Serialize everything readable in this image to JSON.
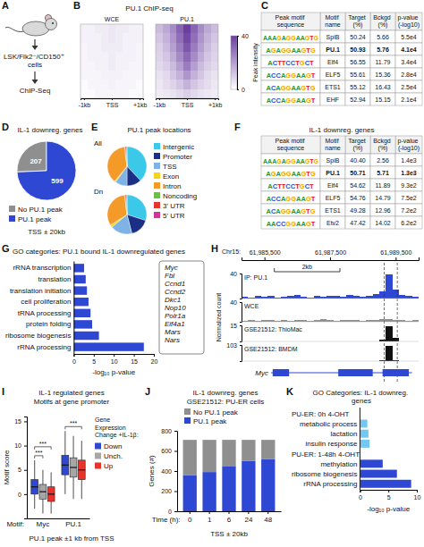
{
  "panel_labels": [
    "A",
    "B",
    "C",
    "D",
    "E",
    "F",
    "G",
    "H",
    "I",
    "J",
    "K"
  ],
  "diagram": {
    "steps": [
      "LSK/Flk2⁻/CD150⁺ cells",
      "ChIP-Seq"
    ]
  },
  "logo_colors": {
    "A": "#1a9e2a",
    "C": "#1f4fd1",
    "G": "#f0a500",
    "T": "#d62020"
  },
  "tables": [
    {
      "columns": [
        "Peak motif sequence",
        "Motif name",
        "Target (%)",
        "Bckgd (%)",
        "p-value (-log10)"
      ],
      "rows": [
        {
          "logo": "AAAGAGGAAGTG",
          "motif": "SpiB",
          "target": "50.24",
          "bckgd": "5.66",
          "p": "5.5e4"
        },
        {
          "logo": "AGAGGAAGTG",
          "motif": "PU.1",
          "target": "50.93",
          "bckgd": "5.76",
          "p": "4.1e4",
          "highlight": true
        },
        {
          "logo": "ACTTCCTGCT",
          "motif": "Elf4",
          "target": "56.55",
          "bckgd": "11.79",
          "p": "3.4e4"
        },
        {
          "logo": "ACCAGGAAGT",
          "motif": "ELF5",
          "target": "55.61",
          "bckgd": "15.36",
          "p": "2.8e4"
        },
        {
          "logo": "ACAGGAAGTG",
          "motif": "ETS1",
          "target": "55.12",
          "bckgd": "16.43",
          "p": "2.5e4"
        },
        {
          "logo": "ACCAGGAAGT",
          "motif": "EHF",
          "target": "52.94",
          "bckgd": "15.15",
          "p": "2.1e4"
        }
      ]
    },
    {
      "title": "IL-1 downreg. genes",
      "columns": [
        "Peak motif sequence",
        "Motif name",
        "Target (%)",
        "Bckgd (%)",
        "p-value (-log10)"
      ],
      "rows": [
        {
          "logo": "AAAGAGGAAGTG",
          "motif": "SpiB",
          "target": "40.40",
          "bckgd": "2.56",
          "p": "1.4e3"
        },
        {
          "logo": "AGAGGAAGTG",
          "motif": "PU.1",
          "target": "50.71",
          "bckgd": "5.71",
          "p": "1.3e3",
          "highlight": true
        },
        {
          "logo": "ACTTCCTGCT",
          "motif": "Elf4",
          "target": "54.62",
          "bckgd": "11.89",
          "p": "9.3e2"
        },
        {
          "logo": "ACCAGGAAGT",
          "motif": "ELF5",
          "target": "54.76",
          "bckgd": "14.79",
          "p": "7.5e2"
        },
        {
          "logo": "ACAGGAAGTG",
          "motif": "ETS1",
          "target": "49.28",
          "bckgd": "12.96",
          "p": "7.2e2"
        },
        {
          "logo": "AACCGGAAGT",
          "motif": "Etv2",
          "target": "47.42",
          "bckgd": "14.02",
          "p": "6.2e2"
        }
      ]
    }
  ],
  "chart_data": [
    {
      "type": "heatmap",
      "title": "PU.1 ChIP-seq",
      "color": "#6b3fa0",
      "xlim": [
        -1125,
        1125
      ],
      "bins": [
        -1125,
        -875,
        -625,
        -375,
        -125,
        125,
        375,
        625,
        875,
        1125
      ],
      "xticks": [
        {
          "value": -1000,
          "label": "-1kb"
        },
        {
          "value": 0,
          "label": "TSS"
        },
        {
          "value": 1000,
          "label": "+1kb"
        }
      ],
      "colorbar": {
        "label": "Peak intensity",
        "range": [
          0,
          40
        ],
        "ticks": [
          0,
          40
        ]
      },
      "panels": [
        {
          "name": "WCE",
          "cells": [
            [
              3,
              3,
              4,
              4,
              5,
              4,
              4,
              3,
              3
            ],
            [
              3,
              3,
              3,
              4,
              5,
              4,
              3,
              3,
              3
            ],
            [
              2,
              3,
              3,
              4,
              4,
              4,
              3,
              3,
              2
            ],
            [
              2,
              3,
              3,
              3,
              4,
              3,
              3,
              3,
              2
            ],
            [
              2,
              2,
              3,
              3,
              4,
              3,
              3,
              2,
              2
            ],
            [
              2,
              2,
              2,
              3,
              3,
              3,
              2,
              2,
              2
            ],
            [
              1,
              2,
              2,
              2,
              3,
              2,
              2,
              2,
              1
            ],
            [
              1,
              1,
              2,
              2,
              2,
              2,
              2,
              1,
              1
            ]
          ]
        },
        {
          "name": "PU.1",
          "cells": [
            [
              14,
              18,
              24,
              32,
              40,
              32,
              24,
              18,
              14
            ],
            [
              12,
              16,
              22,
              30,
              38,
              30,
              22,
              16,
              12
            ],
            [
              10,
              14,
              20,
              27,
              35,
              27,
              20,
              14,
              10
            ],
            [
              9,
              12,
              17,
              24,
              31,
              24,
              17,
              12,
              9
            ],
            [
              8,
              10,
              14,
              20,
              27,
              20,
              14,
              10,
              8
            ],
            [
              6,
              8,
              12,
              16,
              22,
              16,
              12,
              8,
              6
            ],
            [
              5,
              7,
              9,
              12,
              16,
              12,
              9,
              7,
              5
            ],
            [
              4,
              5,
              6,
              8,
              10,
              8,
              6,
              5,
              4
            ]
          ]
        }
      ]
    },
    {
      "type": "pie",
      "title": "IL-1 downreg. genes",
      "categories": [
        "No PU.1 peak",
        "PU.1 peak"
      ],
      "values": [
        207,
        599
      ],
      "colors": [
        "#8f8f8f",
        "#2e48d4"
      ],
      "data_labels": true,
      "legend": "bottom",
      "note": "TSS ± 20kb"
    },
    {
      "type": "pie",
      "title": "PU.1 peak locations",
      "categories": [
        "Intergenic",
        "Promoter",
        "TSS",
        "Exon",
        "Intron",
        "Noncoding",
        "3' UTR",
        "5' UTR"
      ],
      "colors": [
        "#3cc8e8",
        "#1c2f86",
        "#7fb2e5",
        "#f5d31c",
        "#f39a28",
        "#6abf4b",
        "#e2372f",
        "#d0359b"
      ],
      "series": [
        {
          "name": "All",
          "values": [
            38,
            12,
            10,
            1,
            37,
            0.5,
            1,
            0.5
          ]
        },
        {
          "name": "Dn",
          "values": [
            30,
            16,
            18,
            2,
            32,
            0.5,
            1,
            0.5
          ]
        }
      ],
      "legend": "right"
    },
    {
      "type": "bar",
      "orientation": "horizontal",
      "title": "GO categories: PU.1 bound IL-1 downregulated genes",
      "categories": [
        "rRNA transcription",
        "translation",
        "translation initiation",
        "cell proliferation",
        "tRNA processing",
        "protein folding",
        "ribosome biogenesis",
        "rRNA processing"
      ],
      "values": [
        2.6,
        3,
        3.3,
        3.7,
        4.2,
        4.6,
        6.3,
        17.5
      ],
      "color": "#2e48d4",
      "xlim": [
        0,
        20
      ],
      "xticks": [
        0,
        5,
        10,
        15,
        20
      ],
      "xlabel": "-log₁₀ p-value",
      "genes": [
        "Myc",
        "Fbl",
        "Ccnd1",
        "Ccnd2",
        "Dkc1",
        "Nop10",
        "Polr1a",
        "Eif4a1",
        "Mars",
        "Nars"
      ]
    },
    {
      "type": "tracks",
      "chrom": "Chr15:",
      "xlim": [
        61984800,
        61990200
      ],
      "xticks": [
        {
          "value": 61985500,
          "label": "61,985,500"
        },
        {
          "value": 61987500,
          "label": "61,987,500"
        },
        {
          "value": 61989500,
          "label": "61,989,500"
        }
      ],
      "bins": [
        61984800,
        61985000,
        61985200,
        61985400,
        61985600,
        61985800,
        61986000,
        61986200,
        61986400,
        61986600,
        61986800,
        61987000,
        61987200,
        61987400,
        61987600,
        61987800,
        61988000,
        61988200,
        61988400,
        61988600,
        61988800,
        61989000,
        61989200,
        61989400,
        61989600,
        61989800,
        61990000,
        61990200
      ],
      "ylabel": "Normalized count",
      "scale_bar": {
        "label": "2kb",
        "start": 61985800,
        "end": 61987800
      },
      "peak_region": [
        61989150,
        61989550
      ],
      "tracks": [
        {
          "name": "IP: PU.1",
          "color": "#2e48d4",
          "ylim": [
            0,
            40
          ],
          "yticks": [
            40
          ],
          "values": [
            3,
            2,
            4,
            3,
            5,
            2,
            3,
            4,
            6,
            3,
            2,
            4,
            3,
            5,
            4,
            3,
            6,
            4,
            3,
            5,
            7,
            12,
            38,
            15,
            6,
            4,
            3
          ]
        },
        {
          "name": "WCE",
          "color": "#8f8f8f",
          "ylim": [
            0,
            40
          ],
          "yticks": [
            40
          ],
          "values": [
            2,
            3,
            2,
            4,
            3,
            2,
            3,
            2,
            4,
            3,
            2,
            3,
            5,
            3,
            2,
            3,
            4,
            3,
            2,
            3,
            4,
            5,
            6,
            4,
            3,
            2,
            3
          ]
        },
        {
          "name": "GSE21512: ThioMac",
          "color": "#111111",
          "ylim": [
            0,
            15
          ],
          "yticks": [
            15
          ],
          "values": [
            0,
            0,
            0,
            0,
            0,
            0,
            0,
            0,
            0,
            0,
            0,
            0,
            0,
            0,
            0,
            0,
            0,
            0,
            0,
            0,
            0,
            2,
            14,
            3,
            0,
            0,
            0
          ]
        },
        {
          "name": "GSE21512: BMDM",
          "color": "#111111",
          "ylim": [
            0,
            103
          ],
          "yticks": [
            103
          ],
          "values": [
            0,
            0,
            0,
            0,
            0,
            0,
            0,
            0,
            0,
            0,
            0,
            0,
            0,
            0,
            0,
            0,
            0,
            0,
            0,
            0,
            0,
            5,
            100,
            8,
            0,
            0,
            0
          ]
        }
      ],
      "gene": {
        "name": "Myc",
        "start": 61985700,
        "end": 61990000,
        "exons": [
          [
            61985750,
            61986250
          ],
          [
            61987750,
            61988800
          ],
          [
            61989100,
            61989900
          ]
        ]
      }
    },
    {
      "type": "box",
      "title": "IL-1 regulated genes",
      "subtitle": "Motifs at gene promoter",
      "categories": [
        "Myc",
        "PU.1"
      ],
      "xlabel": "Motif:",
      "ylabel": "Motif score",
      "ylim": [
        -5,
        16
      ],
      "yticks": [
        0,
        5,
        10,
        15
      ],
      "legend": "right",
      "legend_title": "Gene Expression Change +IL-1β:",
      "series": [
        {
          "name": "Down",
          "color": "#2e48d4",
          "values": [
            {
              "min": -3,
              "q1": 0,
              "median": 1.5,
              "q3": 3,
              "max": 7
            },
            {
              "min": 0,
              "q1": 4,
              "median": 6,
              "q3": 8,
              "max": 13
            }
          ]
        },
        {
          "name": "Unch.",
          "color": "#a6a6a6",
          "values": [
            {
              "min": -4,
              "q1": -1,
              "median": 0.5,
              "q3": 2,
              "max": 5
            },
            {
              "min": -1,
              "q1": 3.5,
              "median": 5.5,
              "q3": 7.5,
              "max": 12
            }
          ]
        },
        {
          "name": "Up",
          "color": "#e8332c",
          "values": [
            {
              "min": -4,
              "q1": -1.5,
              "median": 0,
              "q3": 1.5,
              "max": 4.5
            },
            {
              "min": -1,
              "q1": 3,
              "median": 5,
              "q3": 7,
              "max": 11
            }
          ]
        }
      ],
      "annotations": [
        {
          "text": "***",
          "category": 0,
          "pair": [
            0,
            1
          ]
        },
        {
          "text": "***",
          "category": 0,
          "pair": [
            0,
            2
          ]
        },
        {
          "text": "***",
          "category": 1,
          "pair": [
            0,
            2
          ]
        }
      ],
      "note": "PU.1 peak ±1 kb from TSS"
    },
    {
      "type": "bar",
      "stacked": true,
      "title": "IL-1 downreg. genes",
      "subtitle": "GSE21512: PU-ER cells",
      "xlabel": "Time (h):",
      "ylabel": "Genes (#)",
      "categories": [
        "0",
        "1",
        "6",
        "24",
        "48"
      ],
      "ylim": [
        0,
        800
      ],
      "yticks": [
        0,
        200,
        400,
        600,
        800
      ],
      "series": [
        {
          "name": "PU.1 peak",
          "color": "#2e48d4",
          "values": [
            360,
            390,
            450,
            500,
            520
          ]
        },
        {
          "name": "No PU.1 peak",
          "color": "#8f8f8f",
          "values": [
            350,
            320,
            260,
            210,
            190
          ]
        }
      ],
      "legend": "top",
      "note": "TSS ± 20kb"
    },
    {
      "type": "bar",
      "orientation": "horizontal",
      "title": "GO Categories: IL-1 downreg. genes",
      "xlabel": "-log₁₀ p-value",
      "xlim": [
        0,
        10
      ],
      "xticks": [
        0,
        5,
        10
      ],
      "series": [
        {
          "name": "PU-ER: 0h 4-OHT",
          "color": "#74c8ef",
          "categories": [
            "metabolic process",
            "lactation",
            "insulin response"
          ],
          "values": [
            1.3,
            1.5,
            1.7
          ]
        },
        {
          "name": "PU-ER: 1-48h 4-OHT",
          "color": "#2e48d4",
          "categories": [
            "methylation",
            "ribosome biogenesis",
            "rRNA processing"
          ],
          "values": [
            4,
            6.5,
            9
          ]
        }
      ]
    }
  ]
}
